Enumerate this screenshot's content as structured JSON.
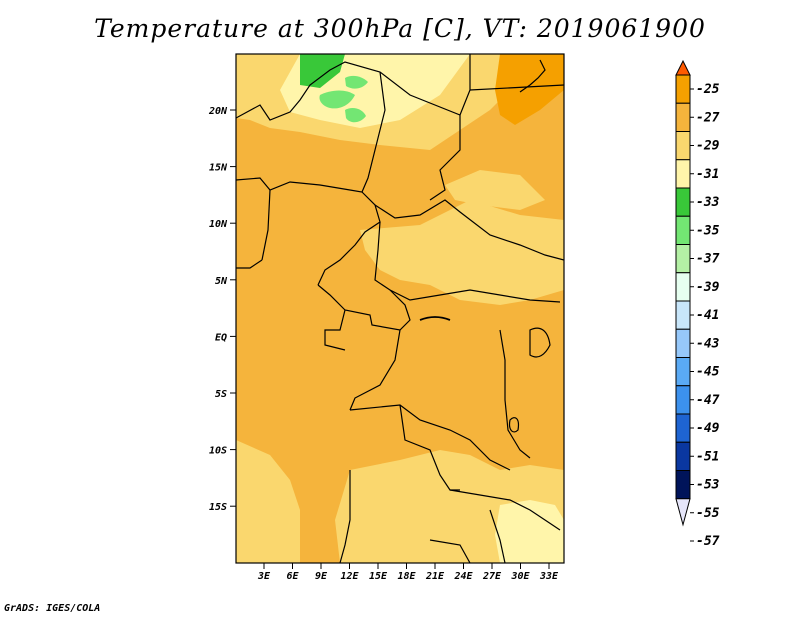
{
  "title": "Temperature at 300hPa [C], VT: 2019061900",
  "credit": "GrADS: IGES/COLA",
  "map": {
    "lat_labels": [
      "20N",
      "15N",
      "10N",
      "5N",
      "EQ",
      "5S",
      "10S",
      "15S"
    ],
    "lon_labels": [
      "3E",
      "6E",
      "9E",
      "12E",
      "15E",
      "18E",
      "21E",
      "24E",
      "27E",
      "30E",
      "33E"
    ]
  },
  "colorbar": {
    "labels": [
      "-25",
      "-27",
      "-29",
      "-31",
      "-33",
      "-35",
      "-37",
      "-39",
      "-41",
      "-43",
      "-45",
      "-47",
      "-49",
      "-51",
      "-53",
      "-55",
      "-57"
    ],
    "colors": [
      "#ff5a00",
      "#f5a000",
      "#f5b43c",
      "#fad76e",
      "#fff5aa",
      "#39c839",
      "#73e673",
      "#b4f0a5",
      "#e6fff0",
      "#c8e6fa",
      "#96c8fa",
      "#5aaaf5",
      "#3c91ed",
      "#1e64d2",
      "#0a37a0",
      "#00145a",
      "#e6e6fa"
    ]
  }
}
